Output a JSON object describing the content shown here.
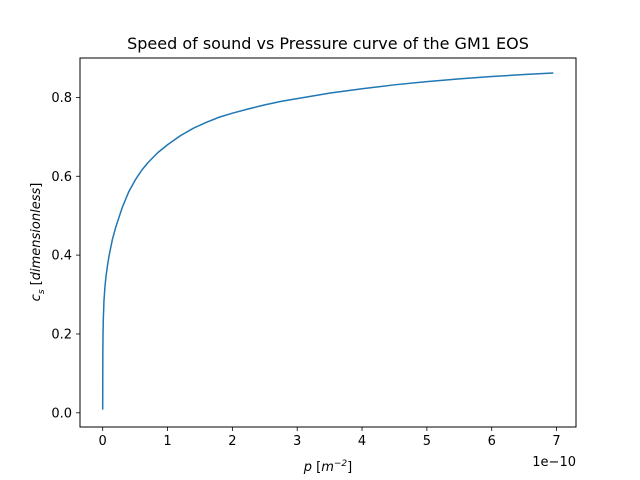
{
  "chart_data": {
    "type": "line",
    "title": "Speed of sound vs Pressure curve of the GM1 EOS",
    "xlabel": {
      "symbol": "p",
      "open": " [",
      "unit_base": "m",
      "unit_exp": "−2",
      "close": "]"
    },
    "ylabel": {
      "symbol": "c",
      "symbol_sub": "s",
      "open": " [",
      "unit": "dimensionless",
      "close": "]"
    },
    "x_offset_label": "1e−10",
    "x_scale": 1e-10,
    "xlim": [
      -0.35,
      7.3
    ],
    "ylim": [
      -0.036,
      0.9
    ],
    "xticks": [
      0,
      1,
      2,
      3,
      4,
      5,
      6,
      7
    ],
    "xtick_labels": [
      "0",
      "1",
      "2",
      "3",
      "4",
      "5",
      "6",
      "7"
    ],
    "yticks": [
      0.0,
      0.2,
      0.4,
      0.6,
      0.8
    ],
    "ytick_labels": [
      "0.0",
      "0.2",
      "0.4",
      "0.6",
      "0.8"
    ],
    "grid": false,
    "line_color": "#1f77b4",
    "series": [
      {
        "x": [
          0.0,
          0.002,
          0.005,
          0.01,
          0.02,
          0.035,
          0.05,
          0.075,
          0.1,
          0.15,
          0.2,
          0.3,
          0.4,
          0.5,
          0.6,
          0.7,
          0.85,
          1.0,
          1.2,
          1.4,
          1.6,
          1.8,
          2.0,
          2.25,
          2.5,
          2.75,
          3.0,
          3.5,
          4.0,
          4.5,
          5.0,
          5.5,
          6.0,
          6.5,
          6.95
        ],
        "y": [
          0.008,
          0.14,
          0.2,
          0.24,
          0.285,
          0.32,
          0.345,
          0.375,
          0.4,
          0.44,
          0.47,
          0.52,
          0.56,
          0.59,
          0.615,
          0.635,
          0.66,
          0.68,
          0.703,
          0.722,
          0.737,
          0.75,
          0.76,
          0.771,
          0.781,
          0.79,
          0.797,
          0.811,
          0.822,
          0.832,
          0.84,
          0.847,
          0.853,
          0.858,
          0.862
        ]
      }
    ]
  }
}
